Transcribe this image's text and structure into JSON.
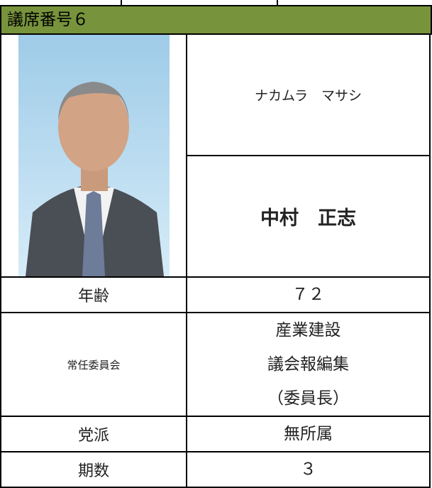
{
  "header": {
    "title": "議席番号６"
  },
  "profile": {
    "furigana": "ナカムラ　マサシ",
    "name": "中村　正志",
    "rows": [
      {
        "label": "年齢",
        "values": [
          "７２"
        ]
      },
      {
        "label": "常任委員会",
        "values": [
          "産業建設",
          "議会報編集",
          "（委員長）"
        ]
      },
      {
        "label": "党派",
        "values": [
          "無所属"
        ]
      },
      {
        "label": "期数",
        "values": [
          "３"
        ]
      }
    ]
  }
}
